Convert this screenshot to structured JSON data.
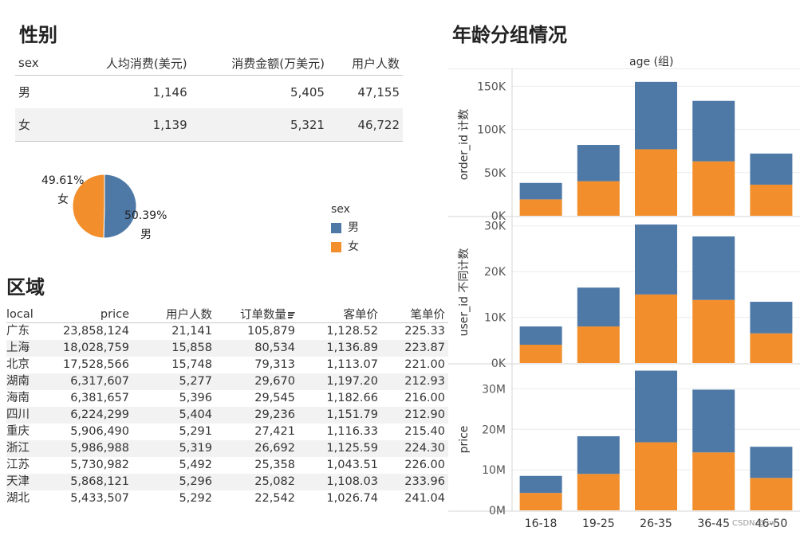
{
  "sex_section": {
    "title": "性别",
    "headers": [
      "sex",
      "人均消费(美元)",
      "消费金额(万美元)",
      "用户人数"
    ],
    "rows": [
      [
        "男",
        "1,146",
        "5,405",
        "47,155"
      ],
      [
        "女",
        "1,139",
        "5,321",
        "46,722"
      ]
    ],
    "pie": {
      "slices": [
        {
          "label": "男",
          "percent_text": "50.39%",
          "value": 50.39,
          "color": "#4e79a7"
        },
        {
          "label": "女",
          "percent_text": "49.61%",
          "value": 49.61,
          "color": "#f28e2b"
        }
      ]
    },
    "legend": {
      "title": "sex",
      "items": [
        {
          "label": "男",
          "color": "#4e79a7"
        },
        {
          "label": "女",
          "color": "#f28e2b"
        }
      ]
    }
  },
  "region_section": {
    "title": "区域",
    "headers": [
      "local",
      "price",
      "用户人数",
      "订单数量",
      "客单价",
      "笔单价"
    ],
    "rows": [
      [
        "广东",
        "23,858,124",
        "21,141",
        "105,879",
        "1,128.52",
        "225.33"
      ],
      [
        "上海",
        "18,028,759",
        "15,858",
        "80,534",
        "1,136.89",
        "223.87"
      ],
      [
        "北京",
        "17,528,566",
        "15,748",
        "79,313",
        "1,113.07",
        "221.00"
      ],
      [
        "湖南",
        "6,317,607",
        "5,277",
        "29,670",
        "1,197.20",
        "212.93"
      ],
      [
        "海南",
        "6,381,657",
        "5,396",
        "29,545",
        "1,182.66",
        "216.00"
      ],
      [
        "四川",
        "6,224,299",
        "5,404",
        "29,236",
        "1,151.79",
        "212.90"
      ],
      [
        "重庆",
        "5,906,490",
        "5,291",
        "27,421",
        "1,116.33",
        "215.40"
      ],
      [
        "浙江",
        "5,986,988",
        "5,319",
        "26,692",
        "1,125.59",
        "224.30"
      ],
      [
        "江苏",
        "5,730,982",
        "5,492",
        "25,358",
        "1,043.51",
        "226.00"
      ],
      [
        "天津",
        "5,868,121",
        "5,296",
        "25,082",
        "1,108.03",
        "233.96"
      ],
      [
        "湖北",
        "5,433,507",
        "5,292",
        "22,542",
        "1,026.74",
        "241.04"
      ]
    ]
  },
  "age_section": {
    "title": "年龄分组情况",
    "column_header": "age (组)",
    "watermark": "CSDN @sw"
  },
  "chart_data": {
    "type": "bar",
    "stacked": true,
    "categories": [
      "16-18",
      "19-25",
      "26-35",
      "36-45",
      "46-50"
    ],
    "colors": {
      "男": "#4e79a7",
      "女": "#f28e2b"
    },
    "panels": [
      {
        "ylabel": "order_id 计数",
        "ylim": [
          0,
          165000
        ],
        "ticks": [
          0,
          50000,
          100000,
          150000
        ],
        "tick_labels": [
          "0K",
          "50K",
          "100K",
          "150K"
        ],
        "series": [
          {
            "name": "女",
            "values": [
              19000,
              40000,
              77000,
              63000,
              36000
            ]
          },
          {
            "name": "男",
            "values": [
              19000,
              42000,
              78000,
              70000,
              36000
            ]
          }
        ]
      },
      {
        "ylabel": "user_id 不同计数",
        "ylim": [
          0,
          31000
        ],
        "ticks": [
          0,
          10000,
          20000,
          30000
        ],
        "tick_labels": [
          "0K",
          "10K",
          "20K",
          "30K"
        ],
        "series": [
          {
            "name": "女",
            "values": [
              4000,
              8000,
              15000,
              13800,
              6500
            ]
          },
          {
            "name": "男",
            "values": [
              4000,
              8500,
              15300,
              13900,
              6900
            ]
          }
        ]
      },
      {
        "ylabel": "price",
        "ylim": [
          0,
          35000000
        ],
        "ticks": [
          0,
          10000000,
          20000000,
          30000000
        ],
        "tick_labels": [
          "0M",
          "10M",
          "20M",
          "30M"
        ],
        "series": [
          {
            "name": "女",
            "values": [
              4300000,
              9000000,
              16800000,
              14300000,
              8000000
            ]
          },
          {
            "name": "男",
            "values": [
              4200000,
              9300000,
              17700000,
              15500000,
              7700000
            ]
          }
        ]
      }
    ]
  }
}
